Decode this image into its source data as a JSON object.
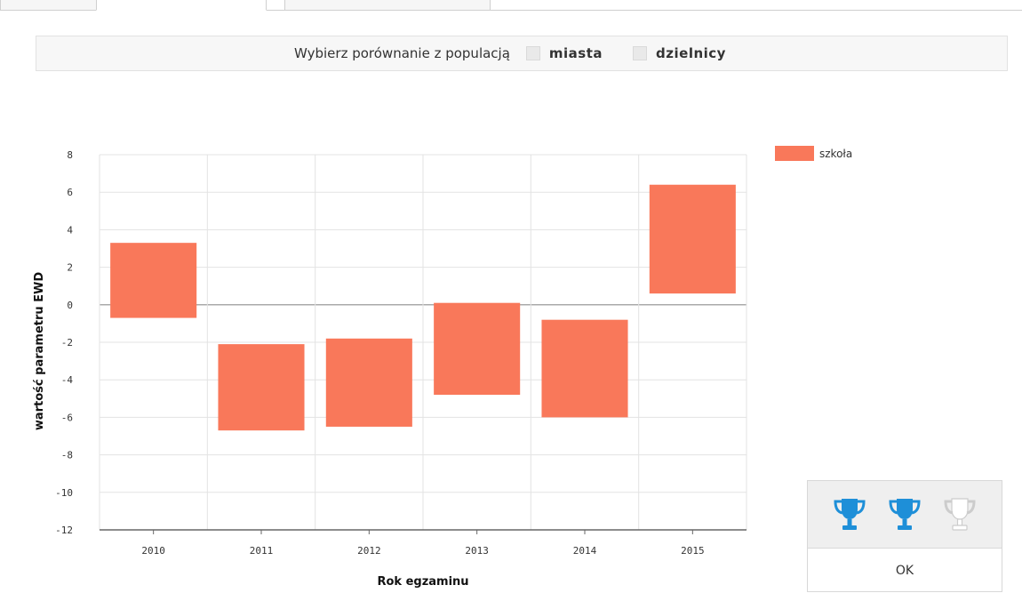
{
  "selector": {
    "prompt": "Wybierz porównanie z populacją",
    "options": [
      {
        "label": "miasta",
        "checked": false
      },
      {
        "label": "dzielnicy",
        "checked": false
      }
    ]
  },
  "chart_data": {
    "type": "bar",
    "subtype": "floating-range",
    "xlabel": "Rok egzaminu",
    "ylabel": "wartość parametru EWD",
    "categories": [
      "2010",
      "2011",
      "2012",
      "2013",
      "2014",
      "2015"
    ],
    "series": [
      {
        "name": "szkoła",
        "color": "#F9785A",
        "ranges": [
          [
            -0.7,
            3.3
          ],
          [
            -6.7,
            -2.1
          ],
          [
            -6.5,
            -1.8
          ],
          [
            -4.8,
            0.1
          ],
          [
            -6.0,
            -0.8
          ],
          [
            0.6,
            6.4
          ]
        ]
      }
    ],
    "ylim": [
      -12,
      8
    ],
    "yticks": [
      8,
      6,
      4,
      2,
      0,
      -2,
      -4,
      -6,
      -8,
      -10,
      -12
    ],
    "grid": true,
    "legend": "top-right"
  },
  "panel": {
    "icons": [
      "trophy-icon",
      "trophy-icon",
      "trophy-icon"
    ],
    "icon_colors": [
      "#1E8FD8",
      "#1E8FD8",
      "#FFFFFF"
    ],
    "ok_label": "OK"
  }
}
